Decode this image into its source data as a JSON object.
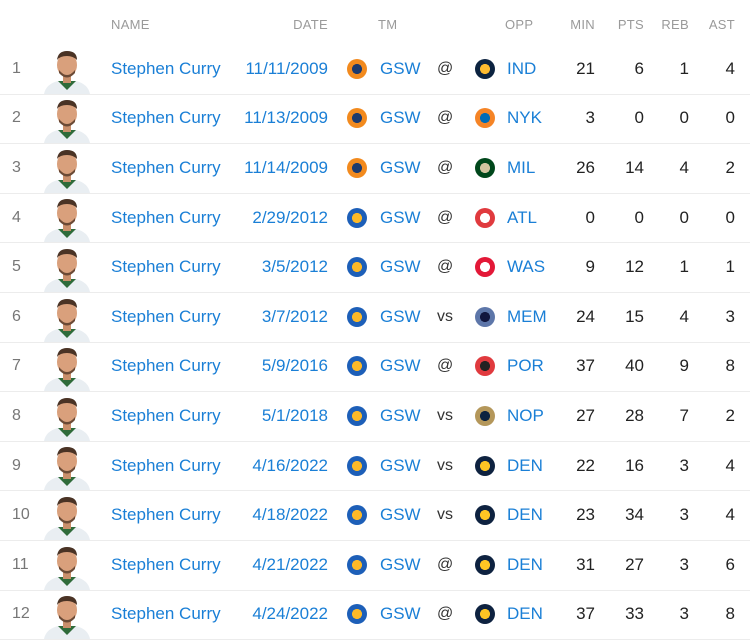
{
  "headers": {
    "name": "NAME",
    "date": "DATE",
    "tm": "TM",
    "opp": "OPP",
    "min": "MIN",
    "pts": "PTS",
    "reb": "REB",
    "ast": "AST"
  },
  "team_colors": {
    "GSW_old": [
      "#f28a1e",
      "#1d3a6e"
    ],
    "GSW": [
      "#1d5fb8",
      "#fdb927"
    ],
    "IND": [
      "#0c2340",
      "#fdbb30"
    ],
    "NYK": [
      "#f58426",
      "#006bb6"
    ],
    "MIL": [
      "#00471b",
      "#d2c5a0"
    ],
    "ATL": [
      "#e03a3e",
      "#ffffff"
    ],
    "WAS": [
      "#e31837",
      "#ffffff"
    ],
    "MEM": [
      "#5d76a9",
      "#12173f"
    ],
    "POR": [
      "#e03a3e",
      "#222222"
    ],
    "NOP": [
      "#b4975a",
      "#0c2340"
    ],
    "DEN": [
      "#0e2240",
      "#fec524"
    ]
  },
  "rows": [
    {
      "rank": "1",
      "name": "Stephen Curry",
      "date": "11/11/2009",
      "team": "GSW",
      "team_logo": "GSW_old",
      "ha": "@",
      "opp": "IND",
      "min": "21",
      "pts": "6",
      "reb": "1",
      "ast": "4"
    },
    {
      "rank": "2",
      "name": "Stephen Curry",
      "date": "11/13/2009",
      "team": "GSW",
      "team_logo": "GSW_old",
      "ha": "@",
      "opp": "NYK",
      "min": "3",
      "pts": "0",
      "reb": "0",
      "ast": "0"
    },
    {
      "rank": "3",
      "name": "Stephen Curry",
      "date": "11/14/2009",
      "team": "GSW",
      "team_logo": "GSW_old",
      "ha": "@",
      "opp": "MIL",
      "min": "26",
      "pts": "14",
      "reb": "4",
      "ast": "2"
    },
    {
      "rank": "4",
      "name": "Stephen Curry",
      "date": "2/29/2012",
      "team": "GSW",
      "team_logo": "GSW",
      "ha": "@",
      "opp": "ATL",
      "min": "0",
      "pts": "0",
      "reb": "0",
      "ast": "0"
    },
    {
      "rank": "5",
      "name": "Stephen Curry",
      "date": "3/5/2012",
      "team": "GSW",
      "team_logo": "GSW",
      "ha": "@",
      "opp": "WAS",
      "min": "9",
      "pts": "12",
      "reb": "1",
      "ast": "1"
    },
    {
      "rank": "6",
      "name": "Stephen Curry",
      "date": "3/7/2012",
      "team": "GSW",
      "team_logo": "GSW",
      "ha": "vs",
      "opp": "MEM",
      "min": "24",
      "pts": "15",
      "reb": "4",
      "ast": "3"
    },
    {
      "rank": "7",
      "name": "Stephen Curry",
      "date": "5/9/2016",
      "team": "GSW",
      "team_logo": "GSW",
      "ha": "@",
      "opp": "POR",
      "min": "37",
      "pts": "40",
      "reb": "9",
      "ast": "8"
    },
    {
      "rank": "8",
      "name": "Stephen Curry",
      "date": "5/1/2018",
      "team": "GSW",
      "team_logo": "GSW",
      "ha": "vs",
      "opp": "NOP",
      "min": "27",
      "pts": "28",
      "reb": "7",
      "ast": "2"
    },
    {
      "rank": "9",
      "name": "Stephen Curry",
      "date": "4/16/2022",
      "team": "GSW",
      "team_logo": "GSW",
      "ha": "vs",
      "opp": "DEN",
      "min": "22",
      "pts": "16",
      "reb": "3",
      "ast": "4"
    },
    {
      "rank": "10",
      "name": "Stephen Curry",
      "date": "4/18/2022",
      "team": "GSW",
      "team_logo": "GSW",
      "ha": "vs",
      "opp": "DEN",
      "min": "23",
      "pts": "34",
      "reb": "3",
      "ast": "4"
    },
    {
      "rank": "11",
      "name": "Stephen Curry",
      "date": "4/21/2022",
      "team": "GSW",
      "team_logo": "GSW",
      "ha": "@",
      "opp": "DEN",
      "min": "31",
      "pts": "27",
      "reb": "3",
      "ast": "6"
    },
    {
      "rank": "12",
      "name": "Stephen Curry",
      "date": "4/24/2022",
      "team": "GSW",
      "team_logo": "GSW",
      "ha": "@",
      "opp": "DEN",
      "min": "37",
      "pts": "33",
      "reb": "3",
      "ast": "8"
    }
  ]
}
